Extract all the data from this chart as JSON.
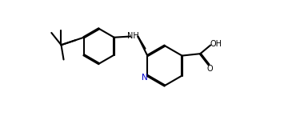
{
  "background_color": "#ffffff",
  "line_color": "#000000",
  "nitrogen_color": "#0000cd",
  "label_color": "#000000",
  "nh_label": "NH",
  "n_label": "N",
  "oh_label": "OH",
  "o_label": "O",
  "figsize": [
    3.6,
    1.55
  ],
  "dpi": 100
}
